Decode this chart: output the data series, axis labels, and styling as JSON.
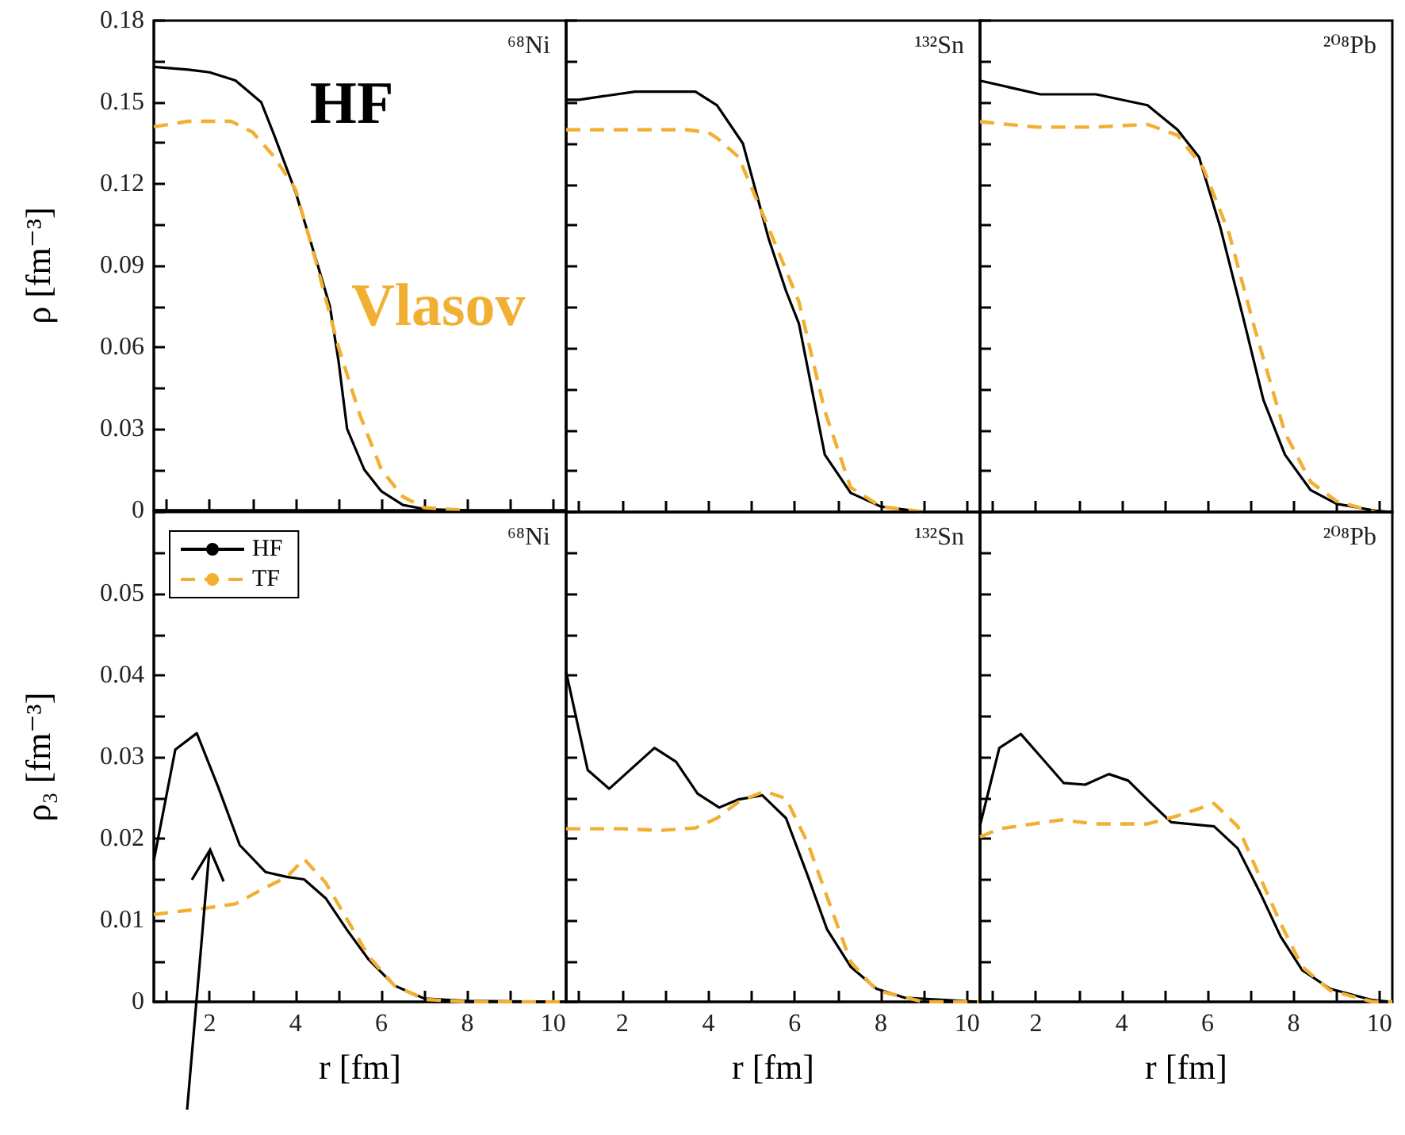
{
  "chart_data": [
    {
      "type": "line",
      "ylabel": "ρ [fm⁻³]",
      "xlim": [
        0.7,
        10.3
      ],
      "ylim": [
        0,
        0.18
      ],
      "tick_labels": "y",
      "grid": false,
      "marker": "none",
      "xticks": [
        {
          "value": 1,
          "label": null
        },
        {
          "value": 2,
          "label": null
        },
        {
          "value": 3,
          "label": null
        },
        {
          "value": 4,
          "label": null
        },
        {
          "value": 5,
          "label": null
        },
        {
          "value": 6,
          "label": null
        },
        {
          "value": 7,
          "label": null
        },
        {
          "value": 8,
          "label": null
        },
        {
          "value": 9,
          "label": null
        },
        {
          "value": 10,
          "label": null
        }
      ],
      "yticks": [
        0,
        {
          "value": 0.015,
          "label": null
        },
        0.03,
        {
          "value": 0.045,
          "label": null
        },
        0.06,
        {
          "value": 0.075,
          "label": null
        },
        0.09,
        {
          "value": 0.105,
          "label": null
        },
        0.12,
        {
          "value": 0.135,
          "label": null
        },
        0.15,
        {
          "value": 0.165,
          "label": null
        },
        0.18
      ],
      "annotations": [
        "⁶⁸Ni",
        "HF",
        "Vlasov"
      ],
      "series": [
        {
          "color": "#000000",
          "line_style": "solid",
          "x": [
            0.7,
            1.5,
            2.0,
            2.6,
            3.2,
            3.5,
            4.0,
            4.5,
            4.8,
            5.0,
            5.2,
            5.6,
            6.0,
            6.5,
            7.0,
            8.0
          ],
          "values": [
            0.163,
            0.162,
            0.161,
            0.158,
            0.15,
            0.138,
            0.117,
            0.091,
            0.075,
            0.055,
            0.03,
            0.015,
            0.007,
            0.002,
            0.0005,
            0
          ]
        },
        {
          "color": "#f2b033",
          "line_style": "dashed",
          "x": [
            0.7,
            1.5,
            2.5,
            3.0,
            3.5,
            4.0,
            4.5,
            5.0,
            5.5,
            6.0,
            6.5,
            7.0,
            8.0
          ],
          "values": [
            0.141,
            0.143,
            0.143,
            0.139,
            0.13,
            0.118,
            0.09,
            0.06,
            0.035,
            0.015,
            0.005,
            0.001,
            0
          ]
        }
      ]
    },
    {
      "type": "line",
      "xlim": [
        0.7,
        10.3
      ],
      "ylim": [
        0,
        0.18
      ],
      "tick_labels": false,
      "grid": false,
      "marker": "none",
      "xticks": [
        {
          "value": 1,
          "label": null
        },
        {
          "value": 2,
          "label": null
        },
        {
          "value": 3,
          "label": null
        },
        {
          "value": 4,
          "label": null
        },
        {
          "value": 5,
          "label": null
        },
        {
          "value": 6,
          "label": null
        },
        {
          "value": 7,
          "label": null
        },
        {
          "value": 8,
          "label": null
        },
        {
          "value": 9,
          "label": null
        },
        {
          "value": 10,
          "label": null
        }
      ],
      "yticks": [
        {
          "value": 0,
          "label": null
        },
        {
          "value": 0.015,
          "label": null
        },
        {
          "value": 0.03,
          "label": null
        },
        {
          "value": 0.045,
          "label": null
        },
        {
          "value": 0.06,
          "label": null
        },
        {
          "value": 0.075,
          "label": null
        },
        {
          "value": 0.09,
          "label": null
        },
        {
          "value": 0.105,
          "label": null
        },
        {
          "value": 0.12,
          "label": null
        },
        {
          "value": 0.135,
          "label": null
        },
        {
          "value": 0.15,
          "label": null
        },
        {
          "value": 0.165,
          "label": null
        },
        {
          "value": 0.18,
          "label": null
        }
      ],
      "annotations": [
        "¹³²Sn"
      ],
      "series": [
        {
          "color": "#000000",
          "line_style": "solid",
          "x": [
            0.7,
            1.0,
            2.3,
            3.7,
            4.2,
            4.8,
            5.4,
            5.8,
            6.1,
            6.7,
            7.3,
            8.0,
            9.0
          ],
          "values": [
            0.151,
            0.151,
            0.154,
            0.154,
            0.149,
            0.135,
            0.1,
            0.081,
            0.069,
            0.021,
            0.007,
            0.002,
            0
          ]
        },
        {
          "color": "#f2b033",
          "line_style": "dashed",
          "x": [
            0.7,
            2.0,
            3.5,
            4.0,
            4.2,
            4.7,
            5.4,
            6.1,
            6.7,
            7.3,
            8.0,
            9.0
          ],
          "values": [
            0.14,
            0.14,
            0.14,
            0.139,
            0.137,
            0.13,
            0.104,
            0.077,
            0.037,
            0.009,
            0.002,
            0
          ]
        }
      ]
    },
    {
      "type": "line",
      "xlim": [
        0.7,
        10.3
      ],
      "ylim": [
        0,
        0.18
      ],
      "tick_labels": false,
      "grid": false,
      "marker": "none",
      "xticks": [
        {
          "value": 1,
          "label": null
        },
        {
          "value": 2,
          "label": null
        },
        {
          "value": 3,
          "label": null
        },
        {
          "value": 4,
          "label": null
        },
        {
          "value": 5,
          "label": null
        },
        {
          "value": 6,
          "label": null
        },
        {
          "value": 7,
          "label": null
        },
        {
          "value": 8,
          "label": null
        },
        {
          "value": 9,
          "label": null
        },
        {
          "value": 10,
          "label": null
        }
      ],
      "yticks": [
        {
          "value": 0,
          "label": null
        },
        {
          "value": 0.015,
          "label": null
        },
        {
          "value": 0.03,
          "label": null
        },
        {
          "value": 0.045,
          "label": null
        },
        {
          "value": 0.06,
          "label": null
        },
        {
          "value": 0.075,
          "label": null
        },
        {
          "value": 0.09,
          "label": null
        },
        {
          "value": 0.105,
          "label": null
        },
        {
          "value": 0.12,
          "label": null
        },
        {
          "value": 0.135,
          "label": null
        },
        {
          "value": 0.15,
          "label": null
        },
        {
          "value": 0.165,
          "label": null
        },
        {
          "value": 0.18,
          "label": null
        }
      ],
      "annotations": [
        "²⁰⁸Pb"
      ],
      "series": [
        {
          "color": "#000000",
          "line_style": "solid",
          "x": [
            0.7,
            2.1,
            3.4,
            4.6,
            5.3,
            5.8,
            6.3,
            6.8,
            7.3,
            7.8,
            8.4,
            9.0,
            9.9,
            10.3
          ],
          "values": [
            0.158,
            0.153,
            0.153,
            0.149,
            0.14,
            0.13,
            0.104,
            0.073,
            0.041,
            0.021,
            0.008,
            0.003,
            0.0005,
            0
          ]
        },
        {
          "color": "#f2b033",
          "line_style": "dashed",
          "x": [
            0.7,
            2.0,
            3.4,
            4.6,
            5.3,
            5.9,
            6.5,
            7.1,
            7.8,
            8.4,
            9.0,
            9.9
          ],
          "values": [
            0.143,
            0.141,
            0.141,
            0.142,
            0.138,
            0.126,
            0.102,
            0.067,
            0.029,
            0.011,
            0.004,
            0
          ]
        }
      ]
    },
    {
      "type": "line",
      "xlabel": "r [fm]",
      "ylabel": "ρ₃ [fm⁻³]",
      "xlim": [
        0.7,
        10.3
      ],
      "ylim": [
        0,
        0.06
      ],
      "grid": false,
      "marker": "none",
      "legend": "top left",
      "xticks": [
        {
          "value": 1,
          "label": null
        },
        2,
        {
          "value": 3,
          "label": null
        },
        4,
        {
          "value": 5,
          "label": null
        },
        6,
        {
          "value": 7,
          "label": null
        },
        8,
        {
          "value": 9,
          "label": null
        },
        10
      ],
      "yticks": [
        0,
        {
          "value": 0.005,
          "label": null
        },
        0.01,
        {
          "value": 0.015,
          "label": null
        },
        0.02,
        {
          "value": 0.025,
          "label": null
        },
        0.03,
        {
          "value": 0.035,
          "label": null
        },
        0.04,
        {
          "value": 0.045,
          "label": null
        },
        0.05,
        {
          "value": 0.055,
          "label": null
        },
        {
          "value": 0.06,
          "label": null
        }
      ],
      "annotations": [
        "⁶⁸Ni"
      ],
      "series": [
        {
          "name": "HF",
          "color": "#000000",
          "line_style": "solid",
          "x": [
            0.7,
            1.2,
            1.7,
            2.2,
            2.7,
            3.3,
            3.8,
            4.2,
            4.7,
            5.2,
            5.7,
            6.3,
            7.0,
            8.0,
            10.3
          ],
          "values": [
            0.0173,
            0.0309,
            0.0329,
            0.0263,
            0.0192,
            0.0159,
            0.0153,
            0.015,
            0.0127,
            0.0088,
            0.0052,
            0.002,
            0.0004,
            0.0001,
            0
          ]
        },
        {
          "name": "TF",
          "color": "#f2b033",
          "line_style": "dashed",
          "x": [
            0.7,
            1.8,
            2.6,
            3.3,
            3.8,
            4.2,
            4.7,
            5.2,
            5.7,
            6.3,
            7.0,
            8.0,
            10.3
          ],
          "values": [
            0.0107,
            0.0114,
            0.012,
            0.014,
            0.0153,
            0.0175,
            0.0146,
            0.0101,
            0.0056,
            0.002,
            0.0003,
            0,
            0
          ]
        }
      ]
    },
    {
      "type": "line",
      "xlabel": "r [fm]",
      "xlim": [
        0.7,
        10.3
      ],
      "ylim": [
        0,
        0.06
      ],
      "tick_labels": "x",
      "grid": false,
      "marker": "none",
      "xticks": [
        {
          "value": 1,
          "label": null
        },
        2,
        {
          "value": 3,
          "label": null
        },
        4,
        {
          "value": 5,
          "label": null
        },
        6,
        {
          "value": 7,
          "label": null
        },
        8,
        {
          "value": 9,
          "label": null
        },
        10
      ],
      "yticks": [
        {
          "value": 0,
          "label": null
        },
        {
          "value": 0.005,
          "label": null
        },
        {
          "value": 0.01,
          "label": null
        },
        {
          "value": 0.015,
          "label": null
        },
        {
          "value": 0.02,
          "label": null
        },
        {
          "value": 0.025,
          "label": null
        },
        {
          "value": 0.03,
          "label": null
        },
        {
          "value": 0.035,
          "label": null
        },
        {
          "value": 0.04,
          "label": null
        },
        {
          "value": 0.045,
          "label": null
        },
        {
          "value": 0.05,
          "label": null
        },
        {
          "value": 0.055,
          "label": null
        },
        {
          "value": 0.06,
          "label": null
        }
      ],
      "annotations": [
        "¹³²Sn"
      ],
      "series": [
        {
          "color": "#000000",
          "line_style": "solid",
          "x": [
            0.7,
            1.2,
            1.7,
            2.75,
            3.25,
            3.75,
            4.25,
            4.7,
            5.25,
            5.8,
            6.3,
            6.75,
            7.3,
            7.9,
            8.55,
            10.3
          ],
          "values": [
            0.0404,
            0.0284,
            0.0261,
            0.0311,
            0.0294,
            0.0255,
            0.0238,
            0.0248,
            0.0253,
            0.0225,
            0.0155,
            0.0089,
            0.0043,
            0.0016,
            0.0005,
            0
          ]
        },
        {
          "color": "#f2b033",
          "line_style": "dashed",
          "x": [
            0.7,
            2.0,
            2.9,
            3.7,
            4.2,
            4.7,
            5.3,
            5.8,
            6.3,
            6.75,
            7.3,
            7.9,
            9.0,
            10.3
          ],
          "values": [
            0.0212,
            0.0212,
            0.021,
            0.0213,
            0.0225,
            0.0245,
            0.0258,
            0.0249,
            0.0195,
            0.0129,
            0.0049,
            0.0014,
            0,
            0
          ]
        }
      ]
    },
    {
      "type": "line",
      "xlabel": "r [fm]",
      "xlim": [
        0.7,
        10.3
      ],
      "ylim": [
        0,
        0.06
      ],
      "tick_labels": "x",
      "grid": false,
      "marker": "none",
      "xticks": [
        {
          "value": 1,
          "label": null
        },
        2,
        {
          "value": 3,
          "label": null
        },
        4,
        {
          "value": 5,
          "label": null
        },
        6,
        {
          "value": 7,
          "label": null
        },
        8,
        {
          "value": 9,
          "label": null
        },
        10
      ],
      "yticks": [
        {
          "value": 0,
          "label": null
        },
        {
          "value": 0.005,
          "label": null
        },
        {
          "value": 0.01,
          "label": null
        },
        {
          "value": 0.015,
          "label": null
        },
        {
          "value": 0.02,
          "label": null
        },
        {
          "value": 0.025,
          "label": null
        },
        {
          "value": 0.03,
          "label": null
        },
        {
          "value": 0.035,
          "label": null
        },
        {
          "value": 0.04,
          "label": null
        },
        {
          "value": 0.045,
          "label": null
        },
        {
          "value": 0.05,
          "label": null
        },
        {
          "value": 0.055,
          "label": null
        },
        {
          "value": 0.06,
          "label": null
        }
      ],
      "annotations": [
        "²⁰⁸Pb"
      ],
      "series": [
        {
          "color": "#000000",
          "line_style": "solid",
          "x": [
            0.7,
            1.15,
            1.65,
            2.15,
            2.65,
            3.15,
            3.7,
            4.15,
            4.65,
            5.15,
            6.15,
            6.7,
            7.2,
            7.7,
            8.2,
            8.85,
            9.85,
            10.3
          ],
          "values": [
            0.0216,
            0.0311,
            0.0328,
            0.0298,
            0.0268,
            0.0266,
            0.0279,
            0.0271,
            0.0245,
            0.022,
            0.0215,
            0.0188,
            0.0136,
            0.008,
            0.0039,
            0.0016,
            0.0002,
            0
          ]
        },
        {
          "color": "#f2b033",
          "line_style": "dashed",
          "x": [
            0.7,
            1.15,
            2.6,
            3.35,
            4.6,
            5.25,
            6.15,
            6.7,
            7.2,
            7.7,
            8.2,
            8.85,
            9.85,
            10.3
          ],
          "values": [
            0.0202,
            0.0212,
            0.0223,
            0.0218,
            0.0218,
            0.0227,
            0.0243,
            0.0215,
            0.0155,
            0.0096,
            0.0043,
            0.0014,
            0,
            0
          ]
        }
      ]
    }
  ]
}
